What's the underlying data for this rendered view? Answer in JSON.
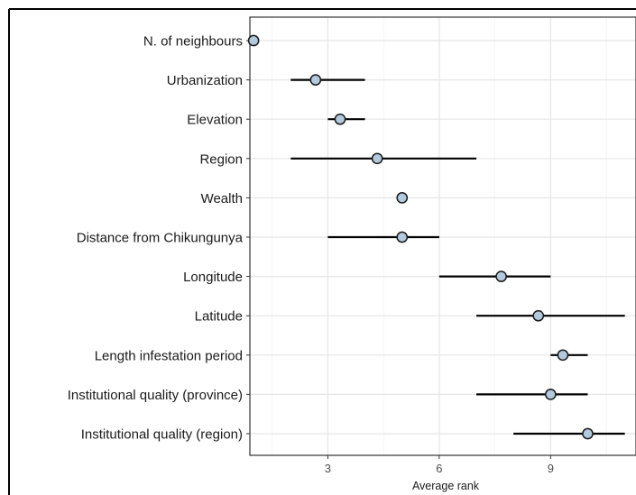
{
  "chart_data": {
    "type": "scatter",
    "title": "",
    "xlabel": "Average rank",
    "ylabel": "",
    "xlim": [
      0.9,
      11.3
    ],
    "x_ticks": [
      3,
      6,
      9
    ],
    "x_minor_ticks": [
      1.5,
      4.5,
      7.5,
      10.5
    ],
    "grid": true,
    "legend": "none",
    "point_fill": "#b3c9dd",
    "point_stroke": "#1a1a1a",
    "categories": [
      "N. of neighbours",
      "Urbanization",
      "Elevation",
      "Region",
      "Wealth",
      "Distance from Chikungunya",
      "Longitude",
      "Latitude",
      "Length infestation period",
      "Institutional quality (province)",
      "Institutional quality (region)"
    ],
    "values": [
      1,
      2.67,
      3.33,
      4.33,
      5,
      5,
      7.67,
      8.67,
      9.33,
      9,
      10
    ],
    "error_low": [
      1,
      2,
      3,
      2,
      5,
      3,
      6,
      7,
      9,
      7,
      8
    ],
    "error_high": [
      1,
      4,
      4,
      7,
      5,
      6,
      9,
      11,
      10,
      10,
      11
    ]
  }
}
